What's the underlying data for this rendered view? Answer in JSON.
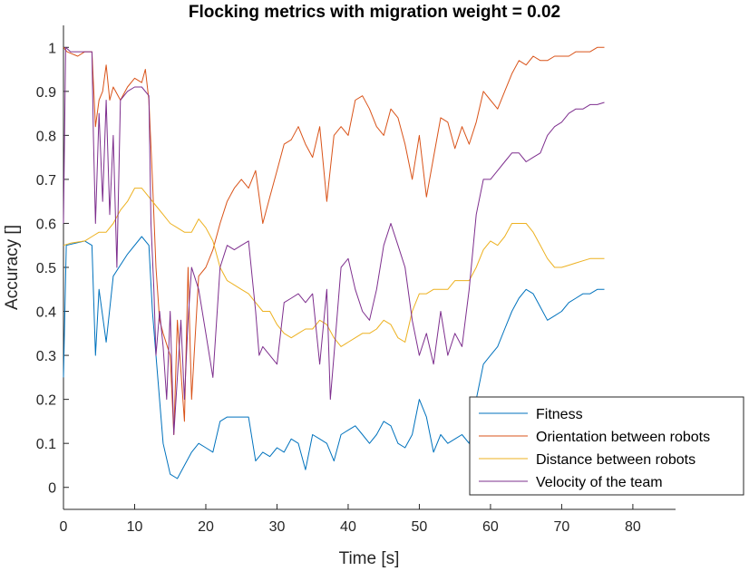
{
  "chart_data": {
    "type": "line",
    "title": "Flocking metrics with migration weight = 0.02",
    "xlabel": "Time [s]",
    "ylabel": "Accuracy []",
    "xlim": [
      0,
      86
    ],
    "ylim": [
      -0.05,
      1.05
    ],
    "xticks": [
      0,
      10,
      20,
      30,
      40,
      50,
      60,
      70,
      80
    ],
    "yticks": [
      0,
      0.1,
      0.2,
      0.3,
      0.4,
      0.5,
      0.6,
      0.7,
      0.8,
      0.9,
      1
    ],
    "grid": false,
    "legend_position": "bottom-right",
    "series": [
      {
        "name": "Fitness",
        "color": "#0072BD",
        "x": [
          0,
          0.4,
          3,
          4,
          4.5,
          5,
          6,
          7,
          9,
          11,
          12,
          12.5,
          13,
          14,
          15,
          16,
          17,
          18,
          19,
          20,
          21,
          22,
          23,
          24,
          25,
          26,
          27,
          28,
          29,
          30,
          31,
          32,
          33,
          34,
          35,
          36,
          37,
          38,
          39,
          40,
          41,
          42,
          43,
          44,
          45,
          46,
          47,
          48,
          49,
          50,
          51,
          52,
          53,
          54,
          55,
          56,
          57,
          58,
          59,
          60,
          61,
          62,
          63,
          64,
          65,
          66,
          67,
          68,
          69,
          70,
          71,
          72,
          73,
          74,
          75,
          76
        ],
        "y": [
          0.25,
          0.55,
          0.56,
          0.55,
          0.3,
          0.45,
          0.33,
          0.48,
          0.53,
          0.57,
          0.55,
          0.4,
          0.3,
          0.1,
          0.03,
          0.02,
          0.05,
          0.08,
          0.1,
          0.09,
          0.08,
          0.15,
          0.16,
          0.16,
          0.16,
          0.16,
          0.06,
          0.08,
          0.07,
          0.09,
          0.08,
          0.11,
          0.1,
          0.04,
          0.12,
          0.11,
          0.1,
          0.06,
          0.12,
          0.13,
          0.14,
          0.12,
          0.1,
          0.12,
          0.15,
          0.14,
          0.1,
          0.09,
          0.12,
          0.2,
          0.16,
          0.08,
          0.12,
          0.1,
          0.11,
          0.12,
          0.1,
          0.2,
          0.28,
          0.3,
          0.32,
          0.36,
          0.4,
          0.43,
          0.45,
          0.44,
          0.41,
          0.38,
          0.39,
          0.4,
          0.42,
          0.43,
          0.44,
          0.44,
          0.45,
          0.45
        ]
      },
      {
        "name": "Orientation between robots",
        "color": "#D95319",
        "x": [
          0,
          0.5,
          2,
          3,
          4,
          4.5,
          5,
          5.5,
          6,
          6.5,
          7,
          8,
          9,
          10,
          11,
          11.5,
          12,
          12.5,
          13,
          13.5,
          14,
          15,
          15.5,
          16,
          17,
          17.5,
          18,
          19,
          20,
          21,
          22,
          23,
          24,
          25,
          26,
          27,
          28,
          29,
          30,
          31,
          32,
          33,
          34,
          35,
          36,
          37,
          38,
          39,
          40,
          41,
          42,
          43,
          44,
          45,
          46,
          47,
          48,
          49,
          50,
          51,
          52,
          53,
          54,
          55,
          56,
          57,
          58,
          59,
          60,
          61,
          62,
          63,
          64,
          65,
          66,
          67,
          68,
          69,
          70,
          71,
          72,
          73,
          74,
          75,
          76
        ],
        "y": [
          1.0,
          0.99,
          0.98,
          0.99,
          0.99,
          0.82,
          0.88,
          0.9,
          0.96,
          0.88,
          0.91,
          0.88,
          0.91,
          0.93,
          0.92,
          0.95,
          0.88,
          0.7,
          0.5,
          0.38,
          0.35,
          0.3,
          0.12,
          0.38,
          0.15,
          0.5,
          0.2,
          0.48,
          0.5,
          0.54,
          0.6,
          0.65,
          0.68,
          0.7,
          0.68,
          0.72,
          0.6,
          0.66,
          0.72,
          0.78,
          0.79,
          0.82,
          0.78,
          0.75,
          0.82,
          0.65,
          0.8,
          0.82,
          0.8,
          0.88,
          0.89,
          0.86,
          0.82,
          0.8,
          0.86,
          0.84,
          0.78,
          0.7,
          0.8,
          0.66,
          0.75,
          0.84,
          0.83,
          0.77,
          0.82,
          0.78,
          0.83,
          0.9,
          0.88,
          0.86,
          0.9,
          0.94,
          0.97,
          0.96,
          0.98,
          0.97,
          0.97,
          0.98,
          0.98,
          0.98,
          0.99,
          0.99,
          0.99,
          1.0,
          1.0
        ]
      },
      {
        "name": "Distance between robots",
        "color": "#EDB120",
        "x": [
          0,
          1,
          3,
          4,
          5,
          6,
          7,
          8,
          9,
          10,
          11,
          12,
          13,
          14,
          15,
          16,
          17,
          18,
          19,
          20,
          21,
          22,
          23,
          24,
          25,
          26,
          27,
          28,
          29,
          30,
          31,
          32,
          33,
          34,
          35,
          36,
          37,
          38,
          39,
          40,
          41,
          42,
          43,
          44,
          45,
          46,
          47,
          48,
          49,
          50,
          51,
          52,
          53,
          54,
          55,
          56,
          57,
          58,
          59,
          60,
          61,
          62,
          63,
          64,
          65,
          66,
          67,
          68,
          69,
          70,
          71,
          72,
          73,
          74,
          75,
          76
        ],
        "y": [
          0.55,
          0.555,
          0.56,
          0.57,
          0.58,
          0.58,
          0.6,
          0.63,
          0.65,
          0.68,
          0.68,
          0.66,
          0.64,
          0.62,
          0.6,
          0.59,
          0.58,
          0.58,
          0.61,
          0.59,
          0.56,
          0.5,
          0.47,
          0.46,
          0.45,
          0.44,
          0.42,
          0.4,
          0.4,
          0.37,
          0.35,
          0.34,
          0.35,
          0.36,
          0.36,
          0.38,
          0.37,
          0.34,
          0.32,
          0.33,
          0.34,
          0.35,
          0.35,
          0.36,
          0.38,
          0.37,
          0.34,
          0.33,
          0.4,
          0.44,
          0.44,
          0.45,
          0.45,
          0.45,
          0.47,
          0.47,
          0.47,
          0.5,
          0.54,
          0.56,
          0.55,
          0.57,
          0.6,
          0.6,
          0.6,
          0.58,
          0.55,
          0.52,
          0.5,
          0.5,
          0.505,
          0.51,
          0.515,
          0.52,
          0.52,
          0.52
        ]
      },
      {
        "name": "Velocity of the team",
        "color": "#7E2F8E",
        "x": [
          0,
          0.3,
          1,
          3,
          4,
          4.2,
          4.5,
          5,
          5.5,
          6,
          6.5,
          7,
          7.5,
          8,
          9,
          10,
          11,
          12,
          12.3,
          12.7,
          13,
          13.5,
          14,
          14.5,
          15,
          15.5,
          16,
          16.5,
          17,
          17.5,
          18,
          19,
          20,
          21,
          22,
          23,
          24,
          25,
          26,
          27,
          27.5,
          28,
          29,
          30,
          31,
          32,
          33,
          34,
          35,
          36,
          37,
          37.5,
          38,
          39,
          40,
          41,
          42,
          43,
          44,
          45,
          46,
          47,
          48,
          49,
          50,
          51,
          52,
          53,
          54,
          55,
          56,
          57,
          58,
          59,
          60,
          61,
          62,
          63,
          64,
          65,
          66,
          67,
          68,
          69,
          70,
          71,
          72,
          73,
          74,
          75,
          76
        ],
        "y": [
          0.6,
          1.0,
          0.99,
          0.99,
          0.99,
          0.8,
          0.6,
          0.85,
          0.65,
          0.88,
          0.62,
          0.8,
          0.5,
          0.88,
          0.9,
          0.91,
          0.91,
          0.89,
          0.6,
          0.45,
          0.3,
          0.4,
          0.32,
          0.2,
          0.4,
          0.12,
          0.25,
          0.38,
          0.2,
          0.38,
          0.5,
          0.45,
          0.35,
          0.25,
          0.5,
          0.55,
          0.54,
          0.55,
          0.56,
          0.4,
          0.3,
          0.32,
          0.3,
          0.28,
          0.42,
          0.43,
          0.44,
          0.42,
          0.44,
          0.28,
          0.45,
          0.2,
          0.3,
          0.5,
          0.52,
          0.45,
          0.4,
          0.38,
          0.45,
          0.55,
          0.6,
          0.55,
          0.5,
          0.38,
          0.3,
          0.35,
          0.28,
          0.4,
          0.3,
          0.35,
          0.32,
          0.45,
          0.62,
          0.7,
          0.7,
          0.72,
          0.74,
          0.76,
          0.76,
          0.74,
          0.75,
          0.76,
          0.8,
          0.82,
          0.83,
          0.85,
          0.86,
          0.86,
          0.87,
          0.87,
          0.875
        ]
      }
    ]
  }
}
